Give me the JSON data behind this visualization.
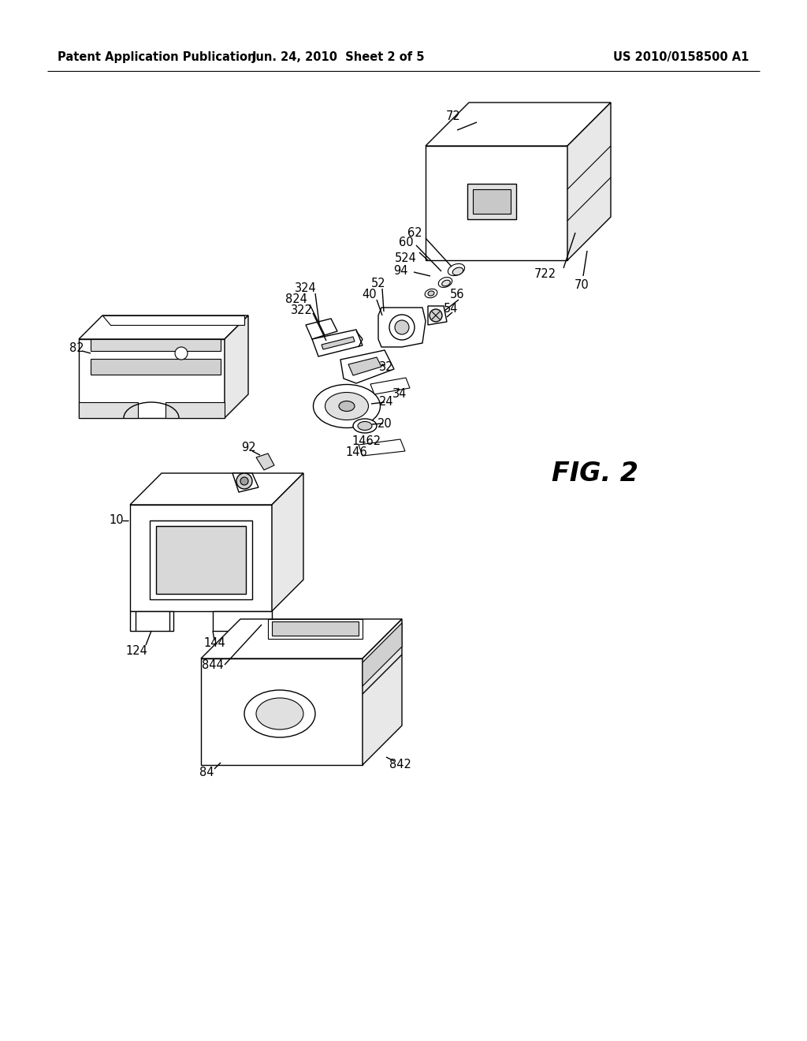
{
  "bg_color": "#ffffff",
  "line_color": "#000000",
  "header_left": "Patent Application Publication",
  "header_mid": "Jun. 24, 2010  Sheet 2 of 5",
  "header_right": "US 2010/0158500 A1",
  "fig_label": "FIG. 2",
  "header_fontsize": 10.5,
  "label_fontsize": 10.5,
  "fig_label_fontsize": 24
}
